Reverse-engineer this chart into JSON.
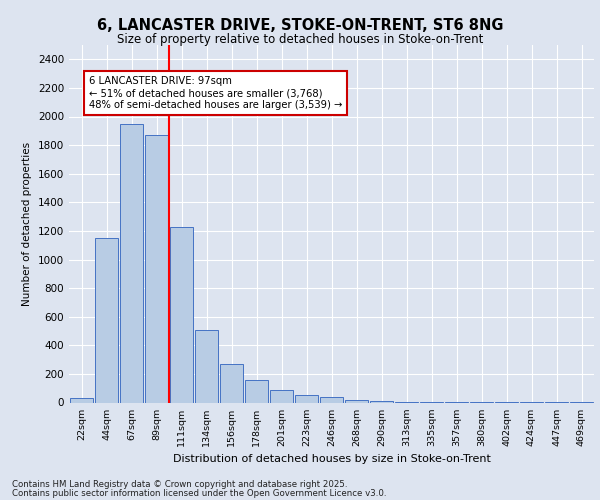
{
  "title_line1": "6, LANCASTER DRIVE, STOKE-ON-TRENT, ST6 8NG",
  "title_line2": "Size of property relative to detached houses in Stoke-on-Trent",
  "xlabel": "Distribution of detached houses by size in Stoke-on-Trent",
  "ylabel": "Number of detached properties",
  "categories": [
    "22sqm",
    "44sqm",
    "67sqm",
    "89sqm",
    "111sqm",
    "134sqm",
    "156sqm",
    "178sqm",
    "201sqm",
    "223sqm",
    "246sqm",
    "268sqm",
    "290sqm",
    "313sqm",
    "335sqm",
    "357sqm",
    "380sqm",
    "402sqm",
    "424sqm",
    "447sqm",
    "469sqm"
  ],
  "values": [
    30,
    1150,
    1950,
    1870,
    1230,
    510,
    270,
    160,
    90,
    50,
    40,
    15,
    8,
    5,
    5,
    3,
    2,
    2,
    1,
    1,
    1
  ],
  "bar_color": "#b8cce4",
  "bar_edge_color": "#4472c4",
  "red_line_x": 3.5,
  "annotation_text": "6 LANCASTER DRIVE: 97sqm\n← 51% of detached houses are smaller (3,768)\n48% of semi-detached houses are larger (3,539) →",
  "annotation_box_color": "#ffffff",
  "annotation_box_edge": "#cc0000",
  "ylim": [
    0,
    2500
  ],
  "yticks": [
    0,
    200,
    400,
    600,
    800,
    1000,
    1200,
    1400,
    1600,
    1800,
    2000,
    2200,
    2400
  ],
  "footer_line1": "Contains HM Land Registry data © Crown copyright and database right 2025.",
  "footer_line2": "Contains public sector information licensed under the Open Government Licence v3.0.",
  "bg_color": "#dde4f0",
  "plot_bg_color": "#dde4f0",
  "grid_color": "#ffffff"
}
